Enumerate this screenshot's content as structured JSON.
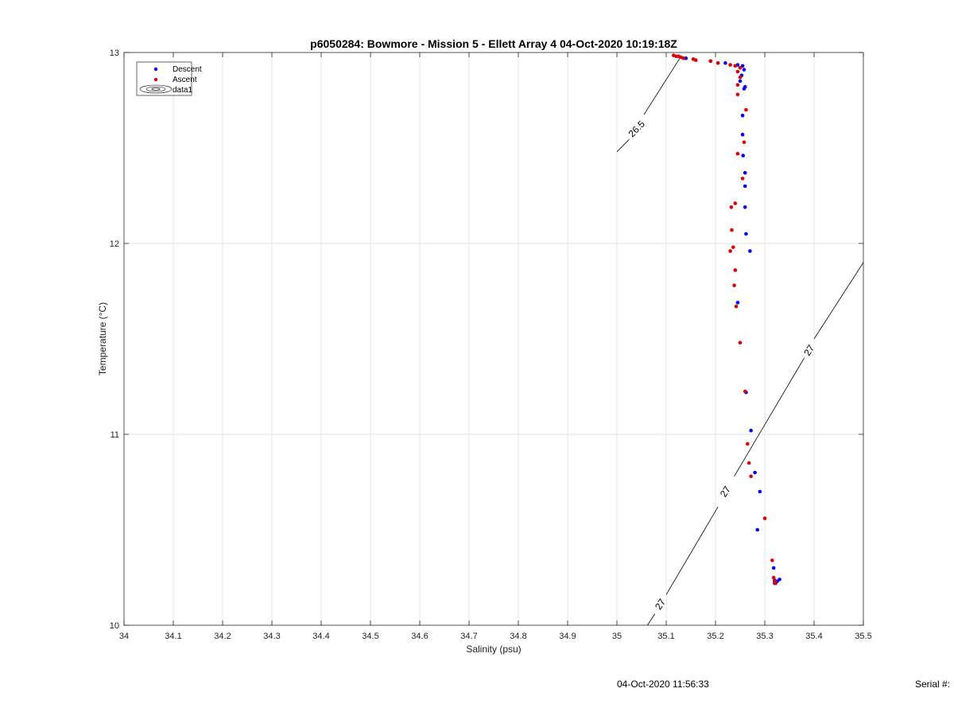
{
  "chart_data": {
    "type": "scatter",
    "title": "p6050284: Bowmore - Mission 5 - Ellett Array 4 04-Oct-2020 10:19:18Z",
    "xlabel": "Salinity (psu)",
    "ylabel": "Temperature (°C)",
    "xlim": [
      34,
      35.5
    ],
    "ylim": [
      10,
      13
    ],
    "x_ticks": [
      "34",
      "34.1",
      "34.2",
      "34.3",
      "34.4",
      "34.5",
      "34.6",
      "34.7",
      "34.8",
      "34.9",
      "35",
      "35.1",
      "35.2",
      "35.3",
      "35.4",
      "35.5"
    ],
    "y_ticks": [
      "10",
      "11",
      "12",
      "13"
    ],
    "grid": true,
    "legend": {
      "placement": "top-left",
      "entries": [
        "Descent",
        "Ascent",
        "data1"
      ]
    },
    "series": [
      {
        "name": "Descent",
        "color": "#0000ff",
        "points": [
          [
            35.14,
            12.97
          ],
          [
            35.19,
            12.955
          ],
          [
            35.22,
            12.945
          ],
          [
            35.245,
            12.935
          ],
          [
            35.255,
            12.93
          ],
          [
            35.258,
            12.91
          ],
          [
            35.253,
            12.88
          ],
          [
            35.25,
            12.85
          ],
          [
            35.26,
            12.82
          ],
          [
            35.258,
            12.81
          ],
          [
            35.255,
            12.67
          ],
          [
            35.255,
            12.57
          ],
          [
            35.256,
            12.46
          ],
          [
            35.26,
            12.37
          ],
          [
            35.26,
            12.3
          ],
          [
            35.26,
            12.19
          ],
          [
            35.262,
            12.05
          ],
          [
            35.27,
            11.96
          ],
          [
            35.245,
            11.69
          ],
          [
            35.262,
            11.22
          ],
          [
            35.272,
            11.02
          ],
          [
            35.28,
            10.8
          ],
          [
            35.29,
            10.7
          ],
          [
            35.285,
            10.5
          ],
          [
            35.318,
            10.3
          ],
          [
            35.32,
            10.235
          ],
          [
            35.325,
            10.23
          ],
          [
            35.33,
            10.24
          ],
          [
            35.32,
            10.22
          ]
        ]
      },
      {
        "name": "Ascent",
        "color": "#dd0000",
        "points": [
          [
            35.115,
            12.985
          ],
          [
            35.12,
            12.98
          ],
          [
            35.125,
            12.98
          ],
          [
            35.13,
            12.975
          ],
          [
            35.135,
            12.97
          ],
          [
            35.155,
            12.965
          ],
          [
            35.16,
            12.96
          ],
          [
            35.19,
            12.955
          ],
          [
            35.205,
            12.945
          ],
          [
            35.23,
            12.935
          ],
          [
            35.24,
            12.93
          ],
          [
            35.25,
            12.92
          ],
          [
            35.245,
            12.9
          ],
          [
            35.25,
            12.87
          ],
          [
            35.245,
            12.83
          ],
          [
            35.245,
            12.78
          ],
          [
            35.262,
            12.7
          ],
          [
            35.258,
            12.53
          ],
          [
            35.245,
            12.47
          ],
          [
            35.255,
            12.34
          ],
          [
            35.24,
            12.21
          ],
          [
            35.232,
            12.19
          ],
          [
            35.233,
            12.07
          ],
          [
            35.236,
            11.98
          ],
          [
            35.23,
            11.96
          ],
          [
            35.24,
            11.86
          ],
          [
            35.238,
            11.78
          ],
          [
            35.242,
            11.67
          ],
          [
            35.25,
            11.48
          ],
          [
            35.26,
            11.225
          ],
          [
            35.265,
            10.95
          ],
          [
            35.268,
            10.85
          ],
          [
            35.272,
            10.78
          ],
          [
            35.3,
            10.56
          ],
          [
            35.315,
            10.34
          ],
          [
            35.318,
            10.25
          ],
          [
            35.32,
            10.23
          ],
          [
            35.322,
            10.22
          ]
        ]
      }
    ],
    "contours": [
      {
        "level": "26.5",
        "segments": [
          [
            [
              35.0,
              12.48
            ],
            [
              35.025,
              12.545
            ]
          ],
          [
            [
              35.055,
              12.675
            ],
            [
              35.13,
              12.98
            ]
          ]
        ],
        "label_at": [
          35.04,
          12.6
        ]
      },
      {
        "level": "27",
        "segments": [
          [
            [
              35.062,
              10.0
            ],
            [
              35.077,
              10.06
            ]
          ],
          [
            [
              35.1,
              10.16
            ],
            [
              35.205,
              10.62
            ]
          ],
          [
            [
              35.238,
              10.78
            ],
            [
              35.38,
              11.4
            ]
          ],
          [
            [
              35.4,
              11.5
            ],
            [
              35.5,
              11.9
            ]
          ]
        ],
        "labels_at": [
          [
            35.088,
            10.11
          ],
          [
            35.22,
            10.7
          ],
          [
            35.39,
            11.44
          ]
        ]
      }
    ]
  },
  "footer": {
    "timestamp": "04-Oct-2020 11:56:33",
    "serial": "Serial #:"
  }
}
